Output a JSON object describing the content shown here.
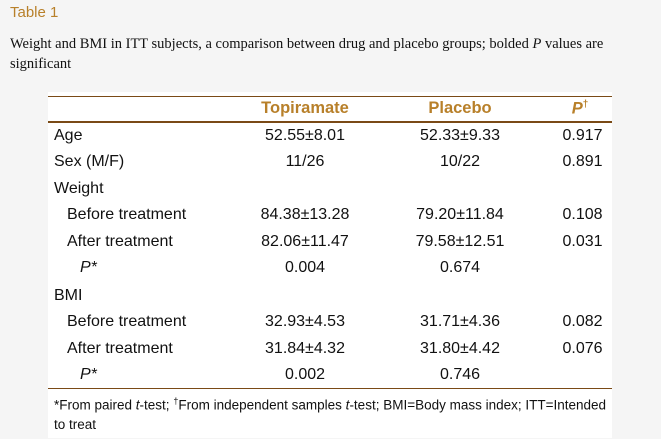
{
  "table_label": "Table 1",
  "caption": {
    "text_before": "Weight and BMI in ITT subjects, a comparison between drug and placebo groups; bolded ",
    "italic_p": "P",
    "text_after": " values are significant"
  },
  "headers": {
    "topiramate": "Topiramate",
    "placebo": "Placebo",
    "p": "P",
    "p_sup": "†"
  },
  "rows": [
    {
      "label": "Age",
      "topiramate": "52.55±8.01",
      "placebo": "52.33±9.33",
      "p": "0.917"
    },
    {
      "label": "Sex (M/F)",
      "topiramate": "11/26",
      "placebo": "10/22",
      "p": "0.891"
    },
    {
      "label": "Weight",
      "topiramate": "",
      "placebo": "",
      "p": ""
    },
    {
      "label": "Before treatment",
      "topiramate": "84.38±13.28",
      "placebo": "79.20±11.84",
      "p": "0.108"
    },
    {
      "label": "After treatment",
      "topiramate": "82.06±11.47",
      "placebo": "79.58±12.51",
      "p": "0.031"
    },
    {
      "label": "P*",
      "topiramate": "0.004",
      "placebo": "0.674",
      "p": ""
    },
    {
      "label": "BMI",
      "topiramate": "",
      "placebo": "",
      "p": ""
    },
    {
      "label": "Before treatment",
      "topiramate": "32.93±4.53",
      "placebo": "31.71±4.36",
      "p": "0.082"
    },
    {
      "label": "After treatment",
      "topiramate": "31.84±4.32",
      "placebo": "31.80±4.42",
      "p": "0.076"
    },
    {
      "label": "P*",
      "topiramate": "0.002",
      "placebo": "0.746",
      "p": ""
    }
  ],
  "footnote": {
    "part1": "*From paired ",
    "t1": "t",
    "part2": "-test; ",
    "dagger": "†",
    "part3": "From independent samples ",
    "t2": "t",
    "part4": "-test; BMI=Body mass index; ITT=Intended to treat"
  }
}
